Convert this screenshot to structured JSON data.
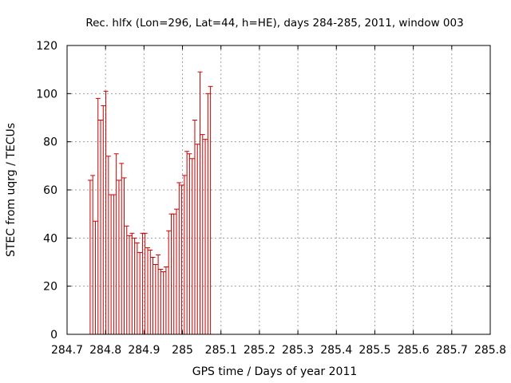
{
  "chart_data": {
    "type": "errorbar",
    "title": "Rec. hlfx (Lon=296, Lat=44, h=HE), days 284-285, 2011, window 003",
    "xlabel": "GPS time / Days of year 2011",
    "ylabel": "STEC from uqrg / TECUs",
    "xlim": [
      284.7,
      285.8
    ],
    "ylim": [
      0,
      120
    ],
    "xticks": [
      284.7,
      284.8,
      284.9,
      285,
      285.1,
      285.2,
      285.3,
      285.4,
      285.5,
      285.6,
      285.7,
      285.8
    ],
    "xtick_labels": [
      "284.7",
      "284.8",
      "284.9",
      "285",
      "285.1",
      "285.2",
      "285.3",
      "285.4",
      "285.5",
      "285.6",
      "285.7",
      "285.8"
    ],
    "yticks": [
      0,
      20,
      40,
      60,
      80,
      100,
      120
    ],
    "ytick_labels": [
      "0",
      "20",
      "40",
      "60",
      "80",
      "100",
      "120"
    ],
    "grid": true,
    "color": "#cc0000",
    "x_start": 284.76,
    "x_step": 0.0068,
    "tops": [
      64,
      66,
      47,
      98,
      89,
      95,
      101,
      74,
      58,
      58,
      75,
      64,
      71,
      65,
      45,
      41,
      42,
      40,
      38,
      34,
      42,
      42,
      36,
      35,
      32,
      29,
      33,
      27,
      26,
      28,
      43,
      50,
      50,
      52,
      63,
      62,
      66,
      76,
      75,
      73,
      89,
      79,
      109,
      83,
      81,
      100,
      103
    ],
    "bottom": 0
  }
}
